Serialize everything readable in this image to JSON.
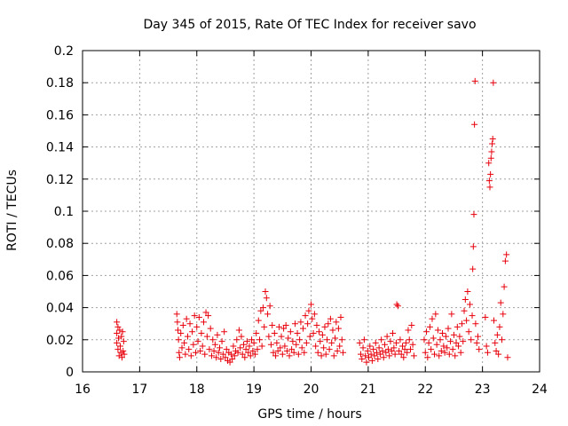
{
  "chart_data": {
    "type": "scatter",
    "title": "Day 345 of 2015, Rate Of TEC Index for receiver savo",
    "xlabel": "GPS time / hours",
    "ylabel": "ROTI / TECUs",
    "xlim": [
      16,
      24
    ],
    "ylim": [
      0,
      0.2
    ],
    "x_ticks": [
      16,
      17,
      18,
      19,
      20,
      21,
      22,
      23,
      24
    ],
    "x_tick_labels": [
      "16",
      "17",
      "18",
      "19",
      "20",
      "21",
      "22",
      "23",
      "24"
    ],
    "y_ticks": [
      0,
      0.02,
      0.04,
      0.06,
      0.08,
      0.1,
      0.12,
      0.14,
      0.16,
      0.18,
      0.2
    ],
    "y_tick_labels": [
      "0",
      "0.02",
      "0.04",
      "0.06",
      "0.08",
      "0.1",
      "0.12",
      "0.14",
      "0.16",
      "0.18",
      "0.2"
    ],
    "grid": true,
    "marker": "+",
    "marker_color": "#e8000b",
    "series": [
      {
        "name": "ROTI",
        "points": [
          [
            16.6,
            0.031
          ],
          [
            16.6,
            0.024
          ],
          [
            16.6,
            0.018
          ],
          [
            16.62,
            0.028
          ],
          [
            16.62,
            0.014
          ],
          [
            16.63,
            0.021
          ],
          [
            16.64,
            0.01
          ],
          [
            16.65,
            0.026
          ],
          [
            16.66,
            0.016
          ],
          [
            16.67,
            0.012
          ],
          [
            16.68,
            0.022
          ],
          [
            16.69,
            0.009
          ],
          [
            16.7,
            0.025
          ],
          [
            16.71,
            0.013
          ],
          [
            16.72,
            0.019
          ],
          [
            16.73,
            0.011
          ],
          [
            17.65,
            0.036
          ],
          [
            17.66,
            0.031
          ],
          [
            17.67,
            0.026
          ],
          [
            17.68,
            0.02
          ],
          [
            17.69,
            0.012
          ],
          [
            17.7,
            0.009
          ],
          [
            17.72,
            0.024
          ],
          [
            17.74,
            0.015
          ],
          [
            17.76,
            0.029
          ],
          [
            17.78,
            0.018
          ],
          [
            17.8,
            0.011
          ],
          [
            17.82,
            0.033
          ],
          [
            17.84,
            0.022
          ],
          [
            17.86,
            0.014
          ],
          [
            17.88,
            0.03
          ],
          [
            17.9,
            0.01
          ],
          [
            17.92,
            0.025
          ],
          [
            17.94,
            0.017
          ],
          [
            17.96,
            0.035
          ],
          [
            17.98,
            0.012
          ],
          [
            18.0,
            0.028
          ],
          [
            18.02,
            0.019
          ],
          [
            18.04,
            0.034
          ],
          [
            18.06,
            0.013
          ],
          [
            18.08,
            0.024
          ],
          [
            18.1,
            0.016
          ],
          [
            18.12,
            0.031
          ],
          [
            18.14,
            0.011
          ],
          [
            18.16,
            0.037
          ],
          [
            18.18,
            0.022
          ],
          [
            18.2,
            0.035
          ],
          [
            18.22,
            0.014
          ],
          [
            18.24,
            0.027
          ],
          [
            18.26,
            0.01
          ],
          [
            18.28,
            0.02
          ],
          [
            18.3,
            0.013
          ],
          [
            18.32,
            0.017
          ],
          [
            18.34,
            0.009
          ],
          [
            18.36,
            0.023
          ],
          [
            18.38,
            0.012
          ],
          [
            18.4,
            0.015
          ],
          [
            18.42,
            0.008
          ],
          [
            18.44,
            0.019
          ],
          [
            18.46,
            0.011
          ],
          [
            18.48,
            0.025
          ],
          [
            18.5,
            0.009
          ],
          [
            18.52,
            0.014
          ],
          [
            18.54,
            0.007
          ],
          [
            18.56,
            0.012
          ],
          [
            18.58,
            0.006
          ],
          [
            18.6,
            0.011
          ],
          [
            18.62,
            0.008
          ],
          [
            18.64,
            0.016
          ],
          [
            18.66,
            0.01
          ],
          [
            18.68,
            0.013
          ],
          [
            18.7,
            0.02
          ],
          [
            18.72,
            0.012
          ],
          [
            18.74,
            0.026
          ],
          [
            18.76,
            0.015
          ],
          [
            18.78,
            0.022
          ],
          [
            18.8,
            0.011
          ],
          [
            18.82,
            0.017
          ],
          [
            18.84,
            0.009
          ],
          [
            18.86,
            0.014
          ],
          [
            18.88,
            0.019
          ],
          [
            18.9,
            0.012
          ],
          [
            18.92,
            0.016
          ],
          [
            18.94,
            0.01
          ],
          [
            18.96,
            0.02
          ],
          [
            18.98,
            0.013
          ],
          [
            19.0,
            0.018
          ],
          [
            19.02,
            0.011
          ],
          [
            19.04,
            0.024
          ],
          [
            19.06,
            0.014
          ],
          [
            19.08,
            0.032
          ],
          [
            19.1,
            0.02
          ],
          [
            19.12,
            0.038
          ],
          [
            19.14,
            0.016
          ],
          [
            19.16,
            0.04
          ],
          [
            19.18,
            0.028
          ],
          [
            19.2,
            0.05
          ],
          [
            19.22,
            0.046
          ],
          [
            19.24,
            0.036
          ],
          [
            19.26,
            0.022
          ],
          [
            19.28,
            0.041
          ],
          [
            19.3,
            0.017
          ],
          [
            19.32,
            0.029
          ],
          [
            19.34,
            0.012
          ],
          [
            19.36,
            0.024
          ],
          [
            19.38,
            0.01
          ],
          [
            19.4,
            0.018
          ],
          [
            19.42,
            0.013
          ],
          [
            19.44,
            0.028
          ],
          [
            19.46,
            0.015
          ],
          [
            19.48,
            0.022
          ],
          [
            19.5,
            0.011
          ],
          [
            19.52,
            0.027
          ],
          [
            19.54,
            0.016
          ],
          [
            19.56,
            0.029
          ],
          [
            19.58,
            0.013
          ],
          [
            19.6,
            0.021
          ],
          [
            19.62,
            0.01
          ],
          [
            19.64,
            0.025
          ],
          [
            19.66,
            0.014
          ],
          [
            19.68,
            0.019
          ],
          [
            19.7,
            0.012
          ],
          [
            19.72,
            0.03
          ],
          [
            19.74,
            0.017
          ],
          [
            19.76,
            0.024
          ],
          [
            19.78,
            0.011
          ],
          [
            19.8,
            0.02
          ],
          [
            19.82,
            0.031
          ],
          [
            19.84,
            0.015
          ],
          [
            19.86,
            0.027
          ],
          [
            19.88,
            0.012
          ],
          [
            19.9,
            0.035
          ],
          [
            19.92,
            0.018
          ],
          [
            19.94,
            0.03
          ],
          [
            19.96,
            0.038
          ],
          [
            19.98,
            0.022
          ],
          [
            20.0,
            0.042
          ],
          [
            20.02,
            0.033
          ],
          [
            20.04,
            0.024
          ],
          [
            20.06,
            0.036
          ],
          [
            20.08,
            0.016
          ],
          [
            20.1,
            0.029
          ],
          [
            20.12,
            0.012
          ],
          [
            20.14,
            0.025
          ],
          [
            20.16,
            0.019
          ],
          [
            20.18,
            0.01
          ],
          [
            20.2,
            0.023
          ],
          [
            20.22,
            0.015
          ],
          [
            20.24,
            0.028
          ],
          [
            20.26,
            0.011
          ],
          [
            20.28,
            0.02
          ],
          [
            20.3,
            0.03
          ],
          [
            20.32,
            0.014
          ],
          [
            20.34,
            0.033
          ],
          [
            20.36,
            0.018
          ],
          [
            20.38,
            0.026
          ],
          [
            20.4,
            0.01
          ],
          [
            20.42,
            0.021
          ],
          [
            20.44,
            0.031
          ],
          [
            20.46,
            0.013
          ],
          [
            20.48,
            0.027
          ],
          [
            20.5,
            0.016
          ],
          [
            20.52,
            0.034
          ],
          [
            20.54,
            0.02
          ],
          [
            20.56,
            0.012
          ],
          [
            20.85,
            0.018
          ],
          [
            20.87,
            0.011
          ],
          [
            20.89,
            0.008
          ],
          [
            20.91,
            0.015
          ],
          [
            20.93,
            0.02
          ],
          [
            20.95,
            0.01
          ],
          [
            20.97,
            0.006
          ],
          [
            20.99,
            0.013
          ],
          [
            21.01,
            0.009
          ],
          [
            21.03,
            0.016
          ],
          [
            21.05,
            0.011
          ],
          [
            21.07,
            0.007
          ],
          [
            21.09,
            0.014
          ],
          [
            21.11,
            0.01
          ],
          [
            21.13,
            0.018
          ],
          [
            21.15,
            0.012
          ],
          [
            21.17,
            0.008
          ],
          [
            21.19,
            0.015
          ],
          [
            21.21,
            0.011
          ],
          [
            21.23,
            0.02
          ],
          [
            21.25,
            0.013
          ],
          [
            21.27,
            0.009
          ],
          [
            21.29,
            0.017
          ],
          [
            21.31,
            0.012
          ],
          [
            21.33,
            0.022
          ],
          [
            21.35,
            0.014
          ],
          [
            21.37,
            0.01
          ],
          [
            21.39,
            0.019
          ],
          [
            21.41,
            0.013
          ],
          [
            21.43,
            0.024
          ],
          [
            21.45,
            0.015
          ],
          [
            21.47,
            0.011
          ],
          [
            21.49,
            0.018
          ],
          [
            21.5,
            0.042
          ],
          [
            21.52,
            0.041
          ],
          [
            21.54,
            0.013
          ],
          [
            21.56,
            0.02
          ],
          [
            21.58,
            0.011
          ],
          [
            21.6,
            0.016
          ],
          [
            21.62,
            0.009
          ],
          [
            21.64,
            0.014
          ],
          [
            21.66,
            0.018
          ],
          [
            21.68,
            0.012
          ],
          [
            21.7,
            0.026
          ],
          [
            21.72,
            0.02
          ],
          [
            21.74,
            0.014
          ],
          [
            21.76,
            0.029
          ],
          [
            21.78,
            0.017
          ],
          [
            21.8,
            0.01
          ],
          [
            21.98,
            0.02
          ],
          [
            22.0,
            0.012
          ],
          [
            22.02,
            0.025
          ],
          [
            22.04,
            0.009
          ],
          [
            22.06,
            0.018
          ],
          [
            22.08,
            0.028
          ],
          [
            22.1,
            0.014
          ],
          [
            22.12,
            0.033
          ],
          [
            22.14,
            0.021
          ],
          [
            22.16,
            0.011
          ],
          [
            22.18,
            0.036
          ],
          [
            22.2,
            0.017
          ],
          [
            22.22,
            0.026
          ],
          [
            22.24,
            0.01
          ],
          [
            22.26,
            0.02
          ],
          [
            22.28,
            0.013
          ],
          [
            22.3,
            0.024
          ],
          [
            22.32,
            0.016
          ],
          [
            22.34,
            0.012
          ],
          [
            22.36,
            0.022
          ],
          [
            22.38,
            0.015
          ],
          [
            22.4,
            0.027
          ],
          [
            22.42,
            0.011
          ],
          [
            22.44,
            0.019
          ],
          [
            22.46,
            0.036
          ],
          [
            22.48,
            0.014
          ],
          [
            22.5,
            0.023
          ],
          [
            22.52,
            0.01
          ],
          [
            22.54,
            0.018
          ],
          [
            22.56,
            0.028
          ],
          [
            22.58,
            0.016
          ],
          [
            22.6,
            0.022
          ],
          [
            22.62,
            0.012
          ],
          [
            22.64,
            0.03
          ],
          [
            22.66,
            0.019
          ],
          [
            22.68,
            0.038
          ],
          [
            22.7,
            0.045
          ],
          [
            22.72,
            0.032
          ],
          [
            22.74,
            0.05
          ],
          [
            22.76,
            0.025
          ],
          [
            22.78,
            0.042
          ],
          [
            22.8,
            0.02
          ],
          [
            22.82,
            0.035
          ],
          [
            22.83,
            0.064
          ],
          [
            22.84,
            0.078
          ],
          [
            22.85,
            0.098
          ],
          [
            22.86,
            0.154
          ],
          [
            22.87,
            0.181
          ],
          [
            22.88,
            0.03
          ],
          [
            22.9,
            0.018
          ],
          [
            22.92,
            0.022
          ],
          [
            22.94,
            0.014
          ],
          [
            23.05,
            0.034
          ],
          [
            23.07,
            0.016
          ],
          [
            23.09,
            0.012
          ],
          [
            23.11,
            0.13
          ],
          [
            23.12,
            0.119
          ],
          [
            23.13,
            0.115
          ],
          [
            23.14,
            0.123
          ],
          [
            23.15,
            0.133
          ],
          [
            23.16,
            0.137
          ],
          [
            23.17,
            0.142
          ],
          [
            23.18,
            0.145
          ],
          [
            23.19,
            0.18
          ],
          [
            23.2,
            0.032
          ],
          [
            23.22,
            0.018
          ],
          [
            23.24,
            0.013
          ],
          [
            23.26,
            0.023
          ],
          [
            23.28,
            0.011
          ],
          [
            23.3,
            0.028
          ],
          [
            23.32,
            0.043
          ],
          [
            23.34,
            0.02
          ],
          [
            23.36,
            0.036
          ],
          [
            23.38,
            0.053
          ],
          [
            23.4,
            0.069
          ],
          [
            23.42,
            0.073
          ],
          [
            23.44,
            0.009
          ]
        ]
      }
    ]
  }
}
